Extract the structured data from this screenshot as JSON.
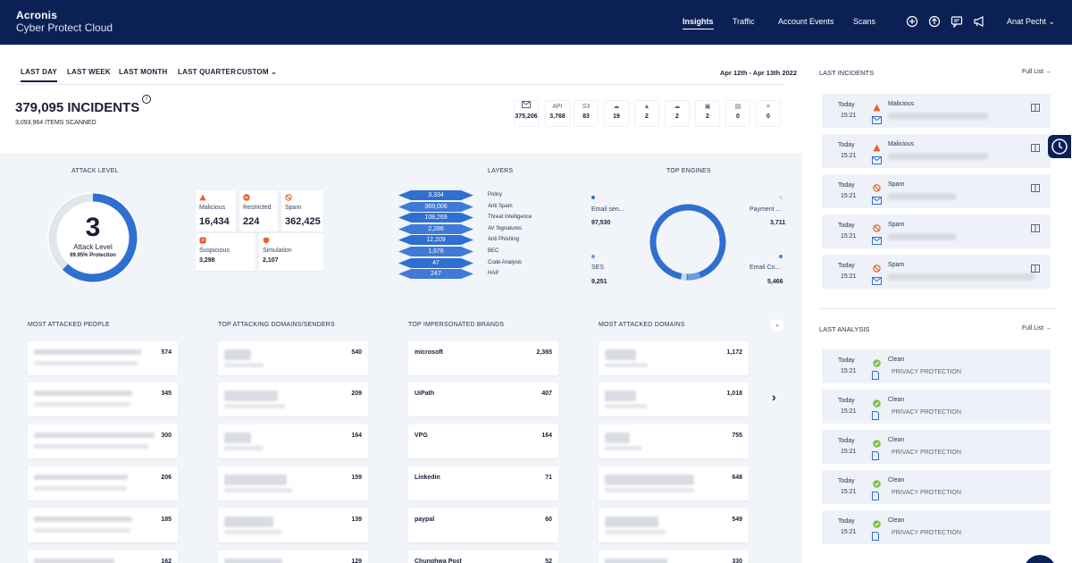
{
  "app": {
    "brand_line1": "Acronis",
    "brand_line2": "Cyber Protect Cloud"
  },
  "nav": {
    "insights": "Insights",
    "traffic": "Traffic",
    "account_events": "Account Events",
    "scans": "Scans",
    "user": "Anat Pecht"
  },
  "period_tabs": {
    "day": "LAST DAY",
    "week": "LAST WEEK",
    "month": "LAST MONTH",
    "quarter": "LAST QUARTER",
    "custom": "CUSTOM"
  },
  "date_range": "Apr 12th - Apr 13th 2022",
  "summary": {
    "incidents": "379,095 INCIDENTS",
    "scanned": "3,093,964 ITEMS SCANNED"
  },
  "channels": [
    {
      "icon": "mail-icon",
      "value": "375,206"
    },
    {
      "label": "API",
      "value": "3,768"
    },
    {
      "label": "S3",
      "value": "83"
    },
    {
      "icon": "cloud-icon",
      "value": "19"
    },
    {
      "icon": "drive-icon",
      "value": "2"
    },
    {
      "icon": "salesforce-icon",
      "value": "2"
    },
    {
      "icon": "exchange-icon",
      "value": "2"
    },
    {
      "icon": "teams-icon",
      "value": "0"
    },
    {
      "icon": "slack-icon",
      "value": "0"
    }
  ],
  "attack_level": {
    "heading": "ATTACK LEVEL",
    "level": "3",
    "label": "Attack Level",
    "protection": "99.95% Protection",
    "fill_fraction": 0.62,
    "types": [
      {
        "label": "Malicious",
        "value": "16,434"
      },
      {
        "label": "Restricted",
        "value": "224"
      },
      {
        "label": "Spam",
        "value": "362,425"
      },
      {
        "label": "Suspicious",
        "value": "3,298"
      },
      {
        "label": "Simulation",
        "value": "2,107"
      }
    ]
  },
  "layers": {
    "heading": "LAYERS",
    "items": [
      {
        "value": "3,334",
        "name": "Policy"
      },
      {
        "value": "369,006",
        "name": "Anti Spam"
      },
      {
        "value": "108,269",
        "name": "Threat Intelligence"
      },
      {
        "value": "2,286",
        "name": "AV Signatures"
      },
      {
        "value": "12,209",
        "name": "Anti Phishing"
      },
      {
        "value": "1,676",
        "name": "BEC"
      },
      {
        "value": "47",
        "name": "Code Analysis"
      },
      {
        "value": "247",
        "name": "HAP"
      }
    ]
  },
  "top_engines": {
    "heading": "TOP ENGINES",
    "items": [
      {
        "name": "Email sen...",
        "value": "97,530"
      },
      {
        "name": "Payment ...",
        "value": "3,711"
      },
      {
        "name": "SES",
        "value": "9,251"
      },
      {
        "name": "Email Co...",
        "value": "5,466"
      }
    ]
  },
  "lists": {
    "people": {
      "heading": "MOST ATTACKED PEOPLE",
      "values": [
        "574",
        "345",
        "300",
        "206",
        "185",
        "162"
      ]
    },
    "domains_senders": {
      "heading": "TOP ATTACKING DOMAINS/SENDERS",
      "values": [
        "540",
        "209",
        "164",
        "159",
        "139",
        "129"
      ]
    },
    "brands": {
      "heading": "TOP IMPERSONATED BRANDS",
      "names": [
        "microsoft",
        "UiPath",
        "VPG",
        "Linkedin",
        "paypal",
        "Chunghwa Post"
      ],
      "values": [
        "2,365",
        "407",
        "164",
        "71",
        "60",
        "52"
      ]
    },
    "attacked_domains": {
      "heading": "MOST ATTACKED DOMAINS",
      "values": [
        "1,172",
        "1,018",
        "755",
        "648",
        "549",
        "330"
      ]
    }
  },
  "last_incidents": {
    "heading": "LAST INCIDENTS",
    "link": "Full List →",
    "items": [
      {
        "day": "Today",
        "time": "15:21",
        "type": "Malicious"
      },
      {
        "day": "Today",
        "time": "15:21",
        "type": "Malicious"
      },
      {
        "day": "Today",
        "time": "15:21",
        "type": "Spam"
      },
      {
        "day": "Today",
        "time": "15:21",
        "type": "Spam"
      },
      {
        "day": "Today",
        "time": "15:21",
        "type": "Spam"
      }
    ]
  },
  "last_analysis": {
    "heading": "LAST ANALYSIS",
    "link": "Full List →",
    "items": [
      {
        "day": "Today",
        "time": "15:21",
        "status": "Clean",
        "desc": "PRIVACY PROTECTION"
      },
      {
        "day": "Today",
        "time": "15:21",
        "status": "Clean",
        "desc": "PRIVACY PROTECTION"
      },
      {
        "day": "Today",
        "time": "15:21",
        "status": "Clean",
        "desc": "PRIVACY PROTECTION"
      },
      {
        "day": "Today",
        "time": "15:21",
        "status": "Clean",
        "desc": "PRIVACY PROTECTION"
      },
      {
        "day": "Today",
        "time": "15:21",
        "status": "Clean",
        "desc": "PRIVACY PROTECTION"
      }
    ]
  },
  "colors": {
    "navy": "#0b2155",
    "accent": "#2f6fd0",
    "malicious": "#e8612c",
    "clean": "#7ac142"
  }
}
